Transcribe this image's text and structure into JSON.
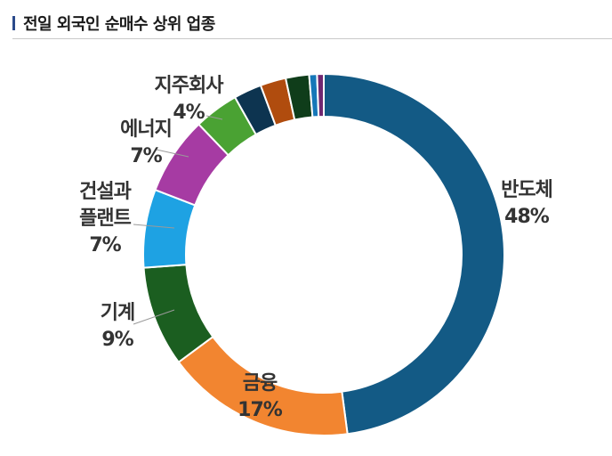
{
  "header": {
    "title": "전일 외국인 순매수 상위 업종"
  },
  "chart_data": {
    "type": "pie",
    "donut": true,
    "title": "전일 외국인 순매수 상위 업종",
    "slices": [
      {
        "name": "반도체",
        "value": 48,
        "label_lines": [
          "반도체",
          "48%"
        ],
        "color": "#135a85",
        "labeled": true
      },
      {
        "name": "금융",
        "value": 17,
        "label_lines": [
          "금융",
          "17%"
        ],
        "color": "#f28530",
        "labeled": true
      },
      {
        "name": "기계",
        "value": 9,
        "label_lines": [
          "기계",
          "9%"
        ],
        "color": "#1b5e20",
        "labeled": true
      },
      {
        "name": "건설과 플랜트",
        "value": 7,
        "label_lines": [
          "건설과",
          "플랜트",
          "7%"
        ],
        "color": "#1ea2e3",
        "labeled": true
      },
      {
        "name": "에너지",
        "value": 7,
        "label_lines": [
          "에너지",
          "7%"
        ],
        "color": "#a63ba3",
        "labeled": true
      },
      {
        "name": "지주회사",
        "value": 4,
        "label_lines": [
          "지주회사",
          "4%"
        ],
        "color": "#4aa233",
        "labeled": true
      },
      {
        "name": "",
        "value": 2.5,
        "color": "#0d3450",
        "labeled": false
      },
      {
        "name": "",
        "value": 2.3,
        "color": "#b04c0e",
        "labeled": false
      },
      {
        "name": "",
        "value": 2.1,
        "color": "#0f3d1a",
        "labeled": false
      },
      {
        "name": "",
        "value": 0.7,
        "color": "#1677b8",
        "labeled": false
      },
      {
        "name": "",
        "value": 0.6,
        "color": "#702770",
        "labeled": false
      }
    ]
  }
}
